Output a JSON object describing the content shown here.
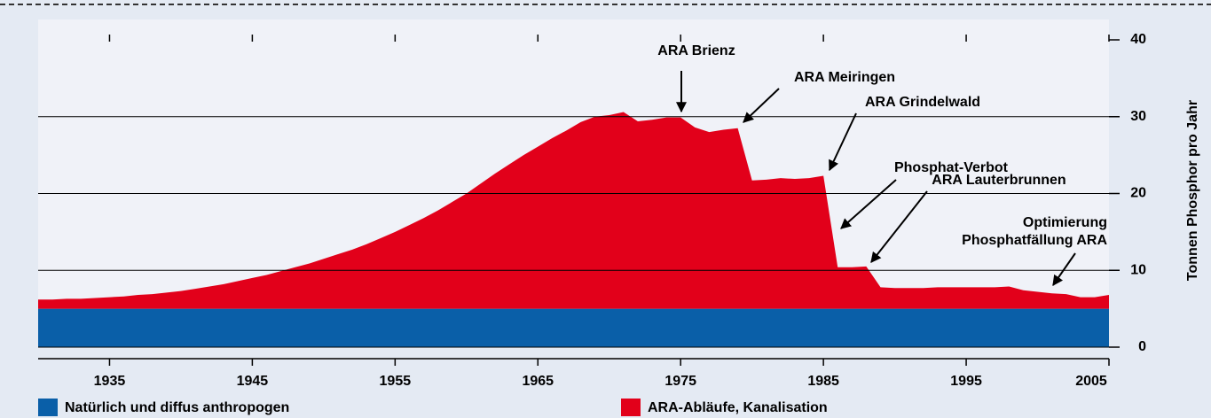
{
  "chart_data": {
    "type": "stacked_area",
    "x": [
      1930,
      1931,
      1932,
      1933,
      1934,
      1935,
      1936,
      1937,
      1938,
      1939,
      1940,
      1941,
      1942,
      1943,
      1944,
      1945,
      1946,
      1947,
      1948,
      1949,
      1950,
      1951,
      1952,
      1953,
      1954,
      1955,
      1956,
      1957,
      1958,
      1959,
      1960,
      1961,
      1962,
      1963,
      1964,
      1965,
      1966,
      1967,
      1968,
      1969,
      1970,
      1971,
      1972,
      1973,
      1974,
      1975,
      1976,
      1977,
      1978,
      1979,
      1980,
      1981,
      1982,
      1983,
      1984,
      1985,
      1986,
      1987,
      1988,
      1989,
      1990,
      1991,
      1992,
      1993,
      1994,
      1995,
      1996,
      1997,
      1998,
      1999,
      2000,
      2001,
      2002,
      2003,
      2004,
      2005
    ],
    "series": [
      {
        "name": "Natürlich und diffus anthropogen",
        "color": "#0a5fa8",
        "values": [
          5,
          5,
          5,
          5,
          5,
          5,
          5,
          5,
          5,
          5,
          5,
          5,
          5,
          5,
          5,
          5,
          5,
          5,
          5,
          5,
          5,
          5,
          5,
          5,
          5,
          5,
          5,
          5,
          5,
          5,
          5,
          5,
          5,
          5,
          5,
          5,
          5,
          5,
          5,
          5,
          5,
          5,
          5,
          5,
          5,
          5,
          5,
          5,
          5,
          5,
          5,
          5,
          5,
          5,
          5,
          5,
          5,
          5,
          5,
          5,
          5,
          5,
          5,
          5,
          5,
          5,
          5,
          5,
          5,
          5,
          5,
          5,
          5,
          5,
          5,
          5
        ]
      },
      {
        "name": "ARA-Abläufe, Kanalisation",
        "color": "#e2001a",
        "values": [
          1.2,
          1.2,
          1.3,
          1.3,
          1.4,
          1.5,
          1.6,
          1.8,
          1.9,
          2.1,
          2.3,
          2.6,
          2.9,
          3.2,
          3.6,
          4.0,
          4.4,
          4.9,
          5.4,
          5.9,
          6.5,
          7.1,
          7.7,
          8.4,
          9.2,
          10.0,
          10.9,
          11.8,
          12.8,
          13.9,
          15.0,
          16.3,
          17.6,
          18.8,
          20.0,
          21.1,
          22.2,
          23.2,
          24.3,
          25.0,
          25.2,
          25.6,
          24.4,
          24.6,
          24.9,
          24.9,
          23.6,
          23.0,
          23.3,
          23.5,
          16.7,
          16.8,
          17.0,
          16.9,
          17.0,
          17.3,
          5.4,
          5.4,
          5.5,
          2.8,
          2.7,
          2.7,
          2.7,
          2.8,
          2.8,
          2.8,
          2.8,
          2.8,
          2.9,
          2.4,
          2.2,
          2.0,
          1.9,
          1.5,
          1.5,
          1.8
        ]
      }
    ],
    "xlim": [
      1930,
      2005
    ],
    "xticks": [
      1935,
      1945,
      1955,
      1965,
      1975,
      1985,
      1995,
      2005
    ],
    "ylim": [
      0,
      40
    ],
    "yticks": [
      0,
      10,
      20,
      30,
      40
    ],
    "grid": true,
    "y_axis_label": "Tonnen Phosphor pro Jahr",
    "annotations": [
      [
        "ARA Brienz"
      ],
      [
        "ARA Meiringen"
      ],
      [
        "ARA Grindelwald"
      ],
      [
        "Phosphat-Verbot"
      ],
      [
        "ARA Lauterbrunnen"
      ],
      [
        "Optimierung",
        "Phosphatfällung ARA"
      ]
    ]
  }
}
